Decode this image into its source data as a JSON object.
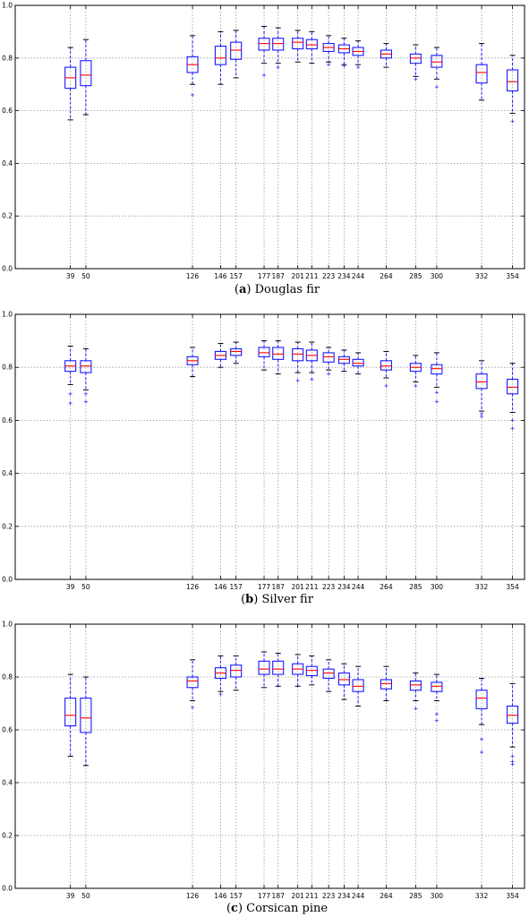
{
  "chart_data": [
    {
      "type": "box",
      "panel_letter": "a",
      "caption": "Douglas fir",
      "x": [
        39,
        50,
        126,
        146,
        157,
        177,
        187,
        201,
        211,
        223,
        234,
        244,
        264,
        285,
        300,
        332,
        354
      ],
      "y_ticks": [
        "0.0",
        "0.2",
        "0.4",
        "0.6",
        "0.8",
        "1.0"
      ],
      "ylim": [
        0,
        1
      ],
      "grid": true,
      "boxes": [
        {
          "whislo": 0.565,
          "q1": 0.685,
          "med": 0.725,
          "q3": 0.765,
          "whishi": 0.84,
          "fliers": []
        },
        {
          "whislo": 0.585,
          "q1": 0.695,
          "med": 0.735,
          "q3": 0.79,
          "whishi": 0.87,
          "fliers": []
        },
        {
          "whislo": 0.7,
          "q1": 0.745,
          "med": 0.775,
          "q3": 0.805,
          "whishi": 0.885,
          "fliers": [
            0.66
          ]
        },
        {
          "whislo": 0.7,
          "q1": 0.775,
          "med": 0.8,
          "q3": 0.845,
          "whishi": 0.9,
          "fliers": []
        },
        {
          "whislo": 0.725,
          "q1": 0.795,
          "med": 0.83,
          "q3": 0.86,
          "whishi": 0.905,
          "fliers": []
        },
        {
          "whislo": 0.78,
          "q1": 0.83,
          "med": 0.855,
          "q3": 0.875,
          "whishi": 0.92,
          "fliers": [
            0.735
          ]
        },
        {
          "whislo": 0.78,
          "q1": 0.83,
          "med": 0.855,
          "q3": 0.875,
          "whishi": 0.915,
          "fliers": [
            0.765
          ]
        },
        {
          "whislo": 0.785,
          "q1": 0.835,
          "med": 0.86,
          "q3": 0.875,
          "whishi": 0.905,
          "fliers": []
        },
        {
          "whislo": 0.78,
          "q1": 0.835,
          "med": 0.85,
          "q3": 0.87,
          "whishi": 0.9,
          "fliers": []
        },
        {
          "whislo": 0.785,
          "q1": 0.825,
          "med": 0.84,
          "q3": 0.855,
          "whishi": 0.885,
          "fliers": [
            0.775
          ]
        },
        {
          "whislo": 0.775,
          "q1": 0.82,
          "med": 0.835,
          "q3": 0.85,
          "whishi": 0.875,
          "fliers": [
            0.77
          ]
        },
        {
          "whislo": 0.775,
          "q1": 0.81,
          "med": 0.825,
          "q3": 0.84,
          "whishi": 0.865,
          "fliers": [
            0.765
          ]
        },
        {
          "whislo": 0.765,
          "q1": 0.8,
          "med": 0.815,
          "q3": 0.83,
          "whishi": 0.855,
          "fliers": []
        },
        {
          "whislo": 0.73,
          "q1": 0.78,
          "med": 0.8,
          "q3": 0.815,
          "whishi": 0.85,
          "fliers": [
            0.72
          ]
        },
        {
          "whislo": 0.72,
          "q1": 0.765,
          "med": 0.785,
          "q3": 0.81,
          "whishi": 0.84,
          "fliers": [
            0.69
          ]
        },
        {
          "whislo": 0.64,
          "q1": 0.705,
          "med": 0.745,
          "q3": 0.775,
          "whishi": 0.855,
          "fliers": []
        },
        {
          "whislo": 0.59,
          "q1": 0.675,
          "med": 0.71,
          "q3": 0.755,
          "whishi": 0.81,
          "fliers": [
            0.56
          ]
        }
      ]
    },
    {
      "type": "box",
      "panel_letter": "b",
      "caption": "Silver fir",
      "x": [
        39,
        50,
        126,
        146,
        157,
        177,
        187,
        201,
        211,
        223,
        234,
        244,
        264,
        285,
        300,
        332,
        354
      ],
      "y_ticks": [
        "0.0",
        "0.2",
        "0.4",
        "0.6",
        "0.8",
        "1.0"
      ],
      "ylim": [
        0,
        1
      ],
      "grid": true,
      "boxes": [
        {
          "whislo": 0.735,
          "q1": 0.785,
          "med": 0.805,
          "q3": 0.825,
          "whishi": 0.88,
          "fliers": [
            0.7,
            0.665
          ]
        },
        {
          "whislo": 0.715,
          "q1": 0.78,
          "med": 0.805,
          "q3": 0.825,
          "whishi": 0.87,
          "fliers": [
            0.7,
            0.67
          ]
        },
        {
          "whislo": 0.765,
          "q1": 0.81,
          "med": 0.825,
          "q3": 0.84,
          "whishi": 0.875,
          "fliers": []
        },
        {
          "whislo": 0.8,
          "q1": 0.83,
          "med": 0.845,
          "q3": 0.86,
          "whishi": 0.89,
          "fliers": []
        },
        {
          "whislo": 0.815,
          "q1": 0.845,
          "med": 0.86,
          "q3": 0.87,
          "whishi": 0.895,
          "fliers": []
        },
        {
          "whislo": 0.79,
          "q1": 0.84,
          "med": 0.855,
          "q3": 0.875,
          "whishi": 0.9,
          "fliers": []
        },
        {
          "whislo": 0.775,
          "q1": 0.83,
          "med": 0.85,
          "q3": 0.875,
          "whishi": 0.9,
          "fliers": []
        },
        {
          "whislo": 0.78,
          "q1": 0.825,
          "med": 0.85,
          "q3": 0.87,
          "whishi": 0.895,
          "fliers": [
            0.75
          ]
        },
        {
          "whislo": 0.78,
          "q1": 0.825,
          "med": 0.845,
          "q3": 0.865,
          "whishi": 0.895,
          "fliers": [
            0.755
          ]
        },
        {
          "whislo": 0.79,
          "q1": 0.82,
          "med": 0.84,
          "q3": 0.855,
          "whishi": 0.875,
          "fliers": [
            0.775
          ]
        },
        {
          "whislo": 0.785,
          "q1": 0.815,
          "med": 0.83,
          "q3": 0.84,
          "whishi": 0.865,
          "fliers": []
        },
        {
          "whislo": 0.775,
          "q1": 0.805,
          "med": 0.815,
          "q3": 0.83,
          "whishi": 0.855,
          "fliers": []
        },
        {
          "whislo": 0.76,
          "q1": 0.79,
          "med": 0.805,
          "q3": 0.825,
          "whishi": 0.86,
          "fliers": [
            0.73
          ]
        },
        {
          "whislo": 0.745,
          "q1": 0.785,
          "med": 0.8,
          "q3": 0.815,
          "whishi": 0.845,
          "fliers": [
            0.73
          ]
        },
        {
          "whislo": 0.725,
          "q1": 0.775,
          "med": 0.795,
          "q3": 0.81,
          "whishi": 0.855,
          "fliers": [
            0.705,
            0.67
          ]
        },
        {
          "whislo": 0.635,
          "q1": 0.72,
          "med": 0.745,
          "q3": 0.775,
          "whishi": 0.825,
          "fliers": [
            0.625,
            0.615
          ]
        },
        {
          "whislo": 0.63,
          "q1": 0.7,
          "med": 0.725,
          "q3": 0.755,
          "whishi": 0.815,
          "fliers": [
            0.6,
            0.57
          ]
        }
      ]
    },
    {
      "type": "box",
      "panel_letter": "c",
      "caption": "Corsican pine",
      "x": [
        39,
        50,
        126,
        146,
        157,
        177,
        187,
        201,
        211,
        223,
        234,
        244,
        264,
        285,
        300,
        332,
        354
      ],
      "y_ticks": [
        "0.0",
        "0.2",
        "0.4",
        "0.6",
        "0.8",
        "1.0"
      ],
      "ylim": [
        0,
        1
      ],
      "grid": true,
      "boxes": [
        {
          "whislo": 0.5,
          "q1": 0.615,
          "med": 0.655,
          "q3": 0.72,
          "whishi": 0.81,
          "fliers": []
        },
        {
          "whislo": 0.465,
          "q1": 0.59,
          "med": 0.645,
          "q3": 0.72,
          "whishi": 0.8,
          "fliers": []
        },
        {
          "whislo": 0.71,
          "q1": 0.76,
          "med": 0.785,
          "q3": 0.8,
          "whishi": 0.865,
          "fliers": [
            0.685
          ]
        },
        {
          "whislo": 0.745,
          "q1": 0.795,
          "med": 0.815,
          "q3": 0.835,
          "whishi": 0.88,
          "fliers": [
            0.735
          ]
        },
        {
          "whislo": 0.75,
          "q1": 0.8,
          "med": 0.825,
          "q3": 0.845,
          "whishi": 0.88,
          "fliers": []
        },
        {
          "whislo": 0.76,
          "q1": 0.81,
          "med": 0.83,
          "q3": 0.86,
          "whishi": 0.895,
          "fliers": []
        },
        {
          "whislo": 0.765,
          "q1": 0.81,
          "med": 0.83,
          "q3": 0.86,
          "whishi": 0.89,
          "fliers": []
        },
        {
          "whislo": 0.765,
          "q1": 0.81,
          "med": 0.83,
          "q3": 0.85,
          "whishi": 0.885,
          "fliers": []
        },
        {
          "whislo": 0.77,
          "q1": 0.805,
          "med": 0.825,
          "q3": 0.84,
          "whishi": 0.88,
          "fliers": []
        },
        {
          "whislo": 0.745,
          "q1": 0.795,
          "med": 0.815,
          "q3": 0.83,
          "whishi": 0.865,
          "fliers": []
        },
        {
          "whislo": 0.715,
          "q1": 0.77,
          "med": 0.79,
          "q3": 0.815,
          "whishi": 0.85,
          "fliers": []
        },
        {
          "whislo": 0.69,
          "q1": 0.745,
          "med": 0.765,
          "q3": 0.79,
          "whishi": 0.84,
          "fliers": []
        },
        {
          "whislo": 0.71,
          "q1": 0.755,
          "med": 0.775,
          "q3": 0.79,
          "whishi": 0.84,
          "fliers": []
        },
        {
          "whislo": 0.71,
          "q1": 0.75,
          "med": 0.77,
          "q3": 0.785,
          "whishi": 0.815,
          "fliers": [
            0.68
          ]
        },
        {
          "whislo": 0.71,
          "q1": 0.745,
          "med": 0.765,
          "q3": 0.78,
          "whishi": 0.81,
          "fliers": [
            0.66,
            0.635
          ]
        },
        {
          "whislo": 0.62,
          "q1": 0.68,
          "med": 0.72,
          "q3": 0.75,
          "whishi": 0.795,
          "fliers": [
            0.565,
            0.515
          ]
        },
        {
          "whislo": 0.535,
          "q1": 0.625,
          "med": 0.655,
          "q3": 0.69,
          "whishi": 0.775,
          "fliers": [
            0.5,
            0.48,
            0.47
          ]
        }
      ]
    }
  ],
  "colors": {
    "box": "#1a1aff",
    "median": "#ff0000",
    "whisker": "#1a1aff",
    "flier": "#3333ff",
    "grid": "#999999",
    "axis": "#000000"
  }
}
